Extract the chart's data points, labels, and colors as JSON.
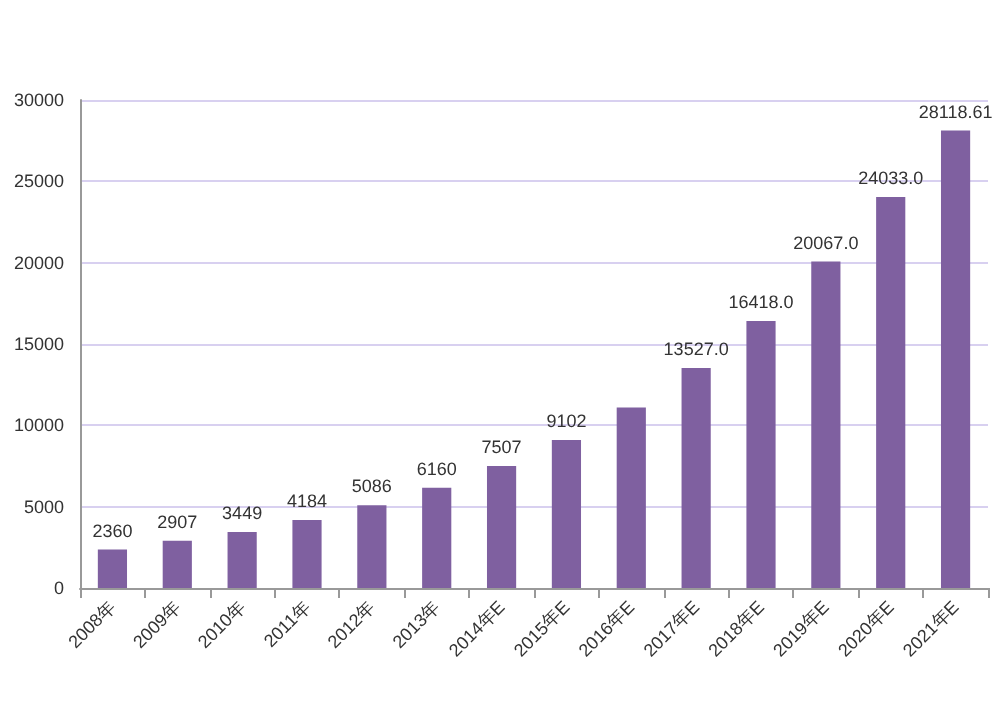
{
  "chart_data": {
    "type": "bar",
    "categories": [
      "2008年",
      "2009年",
      "2010年",
      "2011年",
      "2012年",
      "2013年",
      "2014年E",
      "2015年E",
      "2016年E",
      "2017年E",
      "2018年E",
      "2019年E",
      "2020年E",
      "2021年E"
    ],
    "values": [
      2360,
      2907,
      3449,
      4184,
      5086,
      6160,
      7507,
      9102,
      11100,
      13527.0,
      16418.0,
      20067.0,
      24033.0,
      28118.61
    ],
    "value_labels": [
      "2360",
      "2907",
      "3449",
      "4184",
      "5086",
      "6160",
      "7507",
      "9102",
      null,
      "13527.0",
      "16418.0",
      "20067.0",
      "24033.0",
      "28118.61"
    ],
    "color": "#7f60a0",
    "ylim": [
      0,
      30000
    ],
    "yticks": [
      0,
      5000,
      10000,
      15000,
      20000,
      25000,
      30000
    ],
    "grid": "y"
  }
}
